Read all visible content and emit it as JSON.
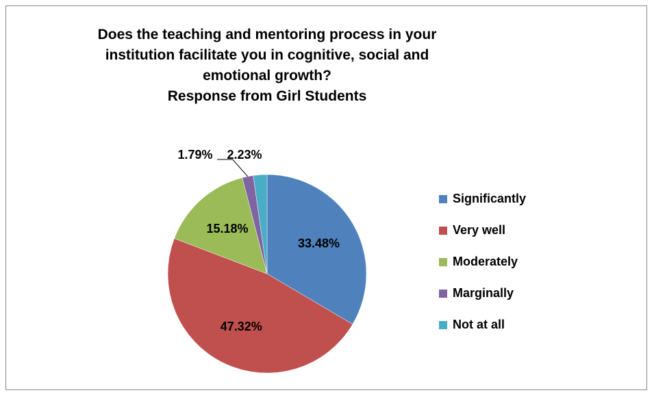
{
  "chart_data": {
    "type": "pie",
    "title": "Does the teaching and mentoring process in your institution facilitate you in cognitive, social and emotional growth?",
    "subtitle": "Response from Girl Students",
    "categories": [
      "Significantly",
      "Very well",
      "Moderately",
      "Marginally",
      "Not at all"
    ],
    "values": [
      33.48,
      47.32,
      15.18,
      1.79,
      2.23
    ],
    "value_labels": [
      "33.48%",
      "47.32%",
      "15.18%",
      "1.79%",
      "2.23%"
    ],
    "colors": [
      "#4f81bd",
      "#c0504d",
      "#9bbb59",
      "#8064a2",
      "#4bacc6"
    ],
    "legend": "right"
  }
}
